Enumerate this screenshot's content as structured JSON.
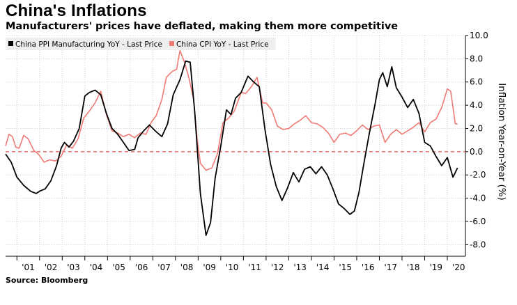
{
  "header": {
    "title": "China's Inflations",
    "subtitle": "Manufacturers' prices have deflated, making them more competitive"
  },
  "footer": {
    "source": "Source: Bloomberg"
  },
  "colors": {
    "ppi": "#000000",
    "cpi": "#f07a74",
    "zero_line": "#e8504a",
    "grid": "#cfcfcf",
    "legend_bg": "#eeeeee"
  },
  "chart_data": {
    "type": "line",
    "title": "China's Inflations",
    "subtitle": "Manufacturers' prices have deflated, making them more competitive",
    "ylabel": "Inflation Year-on-Year (%)",
    "xlabel": "",
    "ylim": [
      -9.0,
      10.0
    ],
    "xlim": [
      2000.5,
      2020.8
    ],
    "y_ticks": [
      10.0,
      8.0,
      6.0,
      4.0,
      2.0,
      0.0,
      -2.0,
      -4.0,
      -6.0,
      -8.0
    ],
    "y_tick_labels": [
      "10.0",
      "8.0",
      "6.0",
      "4.0",
      "2.0",
      "0.0",
      "-2.0",
      "-4.0",
      "-6.0",
      "-8.0"
    ],
    "x_tick_labels": [
      "'01",
      "'02",
      "'03",
      "'04",
      "'05",
      "'06",
      "'07",
      "'08",
      "'09",
      "'10",
      "'11",
      "'12",
      "'13",
      "'14",
      "'15",
      "'16",
      "'17",
      "'18",
      "'19",
      "'20"
    ],
    "x_tick_years": [
      2001,
      2002,
      2003,
      2004,
      2005,
      2006,
      2007,
      2008,
      2009,
      2010,
      2011,
      2012,
      2013,
      2014,
      2015,
      2016,
      2017,
      2018,
      2019,
      2020
    ],
    "reference_line": 0.0,
    "legend": [
      "China PPI Manufacturing YoY - Last Price",
      "China CPI YoY - Last Price"
    ],
    "legend_position": "top-left",
    "series": [
      {
        "name": "China PPI Manufacturing YoY - Last Price",
        "x": [
          2000.5,
          2000.75,
          2001.0,
          2001.3,
          2001.6,
          2001.85,
          2002.0,
          2002.25,
          2002.5,
          2002.75,
          2002.95,
          2003.1,
          2003.3,
          2003.5,
          2003.75,
          2004.0,
          2004.2,
          2004.45,
          2004.7,
          2004.95,
          2005.2,
          2005.45,
          2005.7,
          2005.95,
          2006.2,
          2006.35,
          2006.6,
          2006.85,
          2007.1,
          2007.4,
          2007.65,
          2007.9,
          2008.2,
          2008.45,
          2008.65,
          2008.85,
          2009.1,
          2009.35,
          2009.55,
          2009.75,
          2010.0,
          2010.25,
          2010.45,
          2010.65,
          2010.9,
          2011.2,
          2011.45,
          2011.7,
          2011.95,
          2012.2,
          2012.45,
          2012.7,
          2012.95,
          2013.2,
          2013.45,
          2013.7,
          2013.95,
          2014.2,
          2014.45,
          2014.7,
          2014.95,
          2015.2,
          2015.45,
          2015.7,
          2015.9,
          2016.1,
          2016.3,
          2016.55,
          2016.8,
          2017.0,
          2017.15,
          2017.35,
          2017.55,
          2017.75,
          2018.0,
          2018.25,
          2018.5,
          2018.75,
          2019.0,
          2019.25,
          2019.5,
          2019.75,
          2020.0,
          2020.25,
          2020.45
        ],
        "values": [
          -0.2,
          -0.9,
          -2.2,
          -2.9,
          -3.4,
          -3.6,
          -3.4,
          -3.2,
          -2.5,
          -1.2,
          0.3,
          0.8,
          0.4,
          0.9,
          2.0,
          4.8,
          5.1,
          5.3,
          4.9,
          3.3,
          2.0,
          1.5,
          0.8,
          0.1,
          0.2,
          1.2,
          1.8,
          2.3,
          1.8,
          1.3,
          2.4,
          4.9,
          6.2,
          7.8,
          7.7,
          3.4,
          -3.6,
          -7.2,
          -6.1,
          -2.3,
          0.5,
          3.6,
          3.2,
          4.6,
          5.1,
          6.5,
          6.0,
          5.6,
          1.9,
          -1.1,
          -3.0,
          -4.2,
          -3.1,
          -1.8,
          -2.6,
          -1.5,
          -1.3,
          -1.9,
          -1.3,
          -2.0,
          -3.2,
          -4.5,
          -4.9,
          -5.4,
          -5.1,
          -3.5,
          -1.2,
          1.5,
          4.0,
          6.2,
          6.8,
          5.6,
          7.3,
          5.5,
          4.7,
          3.8,
          4.5,
          3.3,
          0.8,
          0.5,
          -0.4,
          -1.2,
          -0.5,
          -2.2,
          -1.4
        ]
      },
      {
        "name": "China CPI YoY - Last Price",
        "x": [
          2000.5,
          2000.65,
          2000.8,
          2000.95,
          2001.1,
          2001.3,
          2001.5,
          2001.75,
          2001.95,
          2002.2,
          2002.45,
          2002.7,
          2002.95,
          2003.2,
          2003.45,
          2003.7,
          2003.95,
          2004.2,
          2004.45,
          2004.7,
          2004.95,
          2005.2,
          2005.45,
          2005.7,
          2005.95,
          2006.2,
          2006.45,
          2006.7,
          2006.95,
          2007.15,
          2007.4,
          2007.6,
          2007.85,
          2008.05,
          2008.2,
          2008.4,
          2008.6,
          2008.8,
          2008.95,
          2009.1,
          2009.35,
          2009.6,
          2009.85,
          2010.1,
          2010.35,
          2010.6,
          2010.9,
          2011.1,
          2011.35,
          2011.6,
          2011.85,
          2012.0,
          2012.25,
          2012.5,
          2012.75,
          2013.0,
          2013.25,
          2013.5,
          2013.75,
          2014.0,
          2014.25,
          2014.5,
          2014.75,
          2015.0,
          2015.25,
          2015.5,
          2015.75,
          2016.0,
          2016.25,
          2016.5,
          2016.75,
          2017.0,
          2017.25,
          2017.5,
          2017.75,
          2018.0,
          2018.25,
          2018.5,
          2018.75,
          2019.0,
          2019.25,
          2019.5,
          2019.75,
          2020.0,
          2020.15,
          2020.35,
          2020.45
        ],
        "values": [
          0.5,
          1.5,
          1.3,
          0.4,
          0.3,
          1.4,
          1.1,
          0.1,
          -0.2,
          -0.9,
          -0.7,
          -0.8,
          -0.4,
          0.6,
          0.3,
          1.1,
          2.9,
          3.5,
          4.2,
          5.2,
          3.2,
          1.8,
          1.6,
          1.3,
          1.5,
          1.2,
          1.6,
          1.5,
          2.6,
          3.1,
          4.5,
          6.4,
          6.9,
          7.1,
          8.7,
          7.7,
          6.3,
          4.5,
          1.2,
          -1.0,
          -1.6,
          -1.4,
          -0.2,
          2.5,
          2.9,
          3.5,
          5.1,
          5.0,
          5.6,
          6.4,
          4.2,
          4.2,
          3.6,
          2.2,
          1.9,
          2.0,
          2.4,
          2.7,
          3.1,
          2.5,
          2.4,
          2.1,
          1.6,
          0.8,
          1.5,
          1.6,
          1.4,
          1.8,
          2.3,
          1.9,
          2.2,
          2.3,
          0.8,
          1.5,
          1.9,
          1.5,
          1.8,
          2.1,
          2.5,
          1.7,
          2.5,
          2.8,
          3.8,
          5.4,
          5.2,
          2.4,
          2.4
        ]
      }
    ]
  }
}
